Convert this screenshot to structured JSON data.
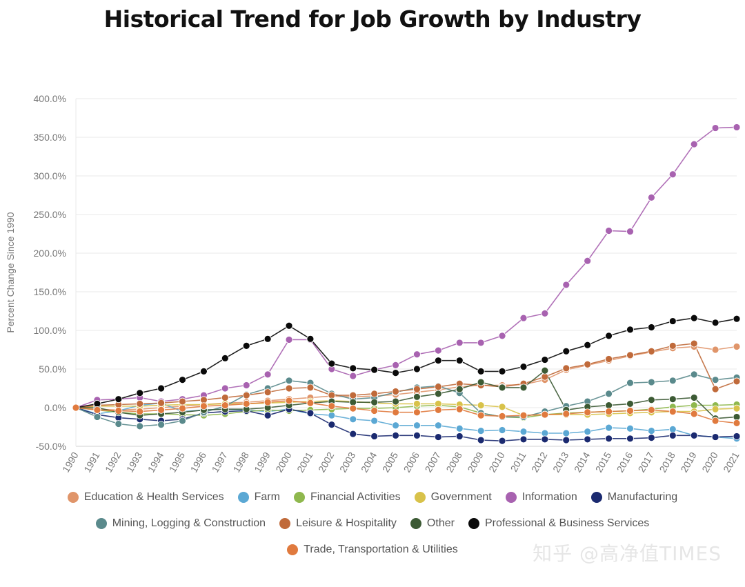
{
  "chart_data": {
    "type": "line",
    "title": "Historical Trend for Job Growth by Industry",
    "ylabel": "Percent Change Since 1990",
    "xlabel": "",
    "ylim": [
      -50,
      400
    ],
    "yticks": [
      "400.0%",
      "350.0%",
      "300.0%",
      "250.0%",
      "200.0%",
      "150.0%",
      "100.0%",
      "50.0%",
      "0.0%",
      "-50.0%"
    ],
    "x": [
      "1990",
      "1991",
      "1992",
      "1993",
      "1994",
      "1995",
      "1996",
      "1997",
      "1998",
      "1999",
      "2000",
      "2001",
      "2002",
      "2003",
      "2004",
      "2005",
      "2006",
      "2007",
      "2008",
      "2009",
      "2010",
      "2011",
      "2012",
      "2013",
      "2014",
      "2015",
      "2016",
      "2017",
      "2018",
      "2019",
      "2020",
      "2021"
    ],
    "grid": true,
    "legend_position": "bottom",
    "series": [
      {
        "name": "Education & Health Services",
        "color": "#e0956a",
        "values": [
          0,
          -2,
          -3,
          -2,
          0,
          2,
          4,
          6,
          7,
          9,
          11,
          13,
          15,
          14,
          15,
          17,
          20,
          23,
          27,
          29,
          29,
          30,
          36,
          49,
          55,
          61,
          67,
          72,
          77,
          79,
          75,
          79
        ]
      },
      {
        "name": "Farm",
        "color": "#5ba8d4",
        "values": [
          0,
          -8,
          -4,
          3,
          6,
          -5,
          -3,
          -2,
          -3,
          -5,
          -2,
          -8,
          -10,
          -15,
          -17,
          -23,
          -23,
          -23,
          -27,
          -30,
          -29,
          -31,
          -33,
          -33,
          -31,
          -26,
          -27,
          -30,
          -28,
          -36,
          -38,
          -40
        ]
      },
      {
        "name": "Financial Activities",
        "color": "#8fb84e",
        "values": [
          0,
          -3,
          -6,
          -8,
          -8,
          -9,
          -10,
          -8,
          -5,
          -3,
          -4,
          -3,
          -2,
          -1,
          -1,
          0,
          2,
          3,
          1,
          -7,
          -12,
          -13,
          -9,
          -7,
          -6,
          -5,
          -4,
          -2,
          1,
          3,
          3,
          4
        ]
      },
      {
        "name": "Government",
        "color": "#d8c24a",
        "values": [
          0,
          2,
          2,
          2,
          3,
          4,
          4,
          5,
          5,
          6,
          7,
          8,
          9,
          8,
          6,
          5,
          5,
          5,
          4,
          3,
          1,
          -10,
          -9,
          -9,
          -9,
          -8,
          -7,
          -6,
          -5,
          -5,
          -2,
          -1
        ]
      },
      {
        "name": "Information",
        "color": "#a862b0",
        "values": [
          0,
          10,
          11,
          13,
          8,
          11,
          16,
          25,
          29,
          43,
          88,
          88,
          50,
          41,
          49,
          55,
          69,
          74,
          84,
          84,
          93,
          116,
          122,
          159,
          190,
          229,
          228,
          272,
          302,
          341,
          362,
          363
        ]
      },
      {
        "name": "Manufacturing",
        "color": "#1b2a70",
        "values": [
          0,
          -9,
          -13,
          -15,
          -17,
          -15,
          -7,
          -5,
          -4,
          -10,
          -2,
          -7,
          -22,
          -34,
          -37,
          -36,
          -36,
          -38,
          -37,
          -42,
          -43,
          -41,
          -41,
          -42,
          -41,
          -40,
          -40,
          -39,
          -36,
          -36,
          -38,
          -37
        ]
      },
      {
        "name": "Mining, Logging & Construction",
        "color": "#5a8a8c",
        "values": [
          0,
          -12,
          -21,
          -24,
          -22,
          -17,
          -6,
          2,
          17,
          25,
          35,
          32,
          18,
          11,
          13,
          20,
          26,
          28,
          19,
          -7,
          -12,
          -12,
          -5,
          2,
          8,
          18,
          32,
          33,
          35,
          43,
          36,
          39
        ]
      },
      {
        "name": "Leisure & Hospitality",
        "color": "#c06a3a",
        "values": [
          0,
          3,
          4,
          5,
          6,
          8,
          10,
          13,
          16,
          20,
          25,
          26,
          16,
          16,
          18,
          21,
          24,
          27,
          31,
          29,
          27,
          31,
          40,
          51,
          56,
          63,
          68,
          73,
          80,
          83,
          24,
          34
        ]
      },
      {
        "name": "Other",
        "color": "#3c5a34",
        "values": [
          0,
          0,
          -6,
          -10,
          -8,
          -6,
          -3,
          -2,
          -2,
          0,
          3,
          6,
          8,
          7,
          7,
          8,
          14,
          18,
          24,
          33,
          26,
          26,
          48,
          -3,
          1,
          3,
          5,
          10,
          11,
          13,
          -14,
          -12
        ]
      },
      {
        "name": "Professional & Business Services",
        "color": "#0a0a0a",
        "values": [
          0,
          5,
          11,
          19,
          25,
          36,
          47,
          64,
          80,
          89,
          106,
          89,
          57,
          51,
          49,
          45,
          50,
          61,
          61,
          47,
          47,
          53,
          62,
          73,
          81,
          93,
          101,
          104,
          112,
          116,
          110,
          115
        ]
      },
      {
        "name": "Trade, Transportation & Utilities",
        "color": "#e07a3e",
        "values": [
          0,
          -3,
          -4,
          -5,
          -3,
          -1,
          2,
          3,
          5,
          7,
          9,
          6,
          2,
          -1,
          -4,
          -6,
          -6,
          -3,
          -2,
          -10,
          -11,
          -10,
          -9,
          -8,
          -6,
          -5,
          -4,
          -3,
          -5,
          -8,
          -17,
          -20
        ]
      }
    ]
  },
  "legend_rows": [
    [
      0,
      1,
      2,
      3,
      4,
      5
    ],
    [
      6,
      7,
      8,
      9
    ],
    [
      10
    ]
  ],
  "watermark": "知乎 @高净值TIMES"
}
